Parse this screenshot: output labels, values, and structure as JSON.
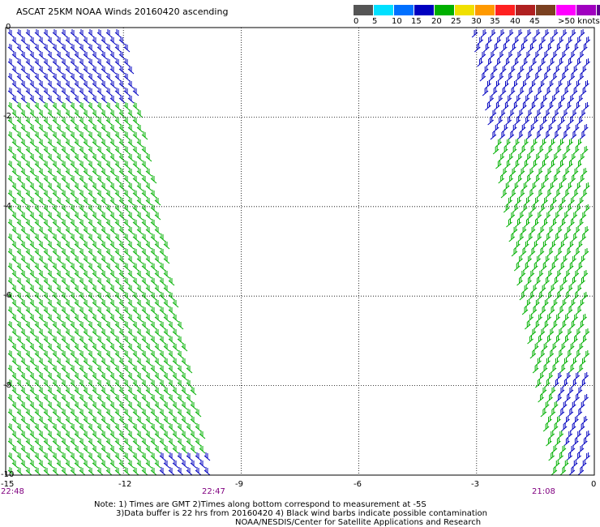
{
  "title": "ASCAT 25KM NOAA Winds 20160420 ascending",
  "legend": {
    "colors": [
      "#555555",
      "#00e0ff",
      "#0070ff",
      "#0000c0",
      "#00b000",
      "#f0e000",
      "#ff9900",
      "#ff2020",
      "#b02020",
      "#7a4020",
      "#ff00ff",
      "#a000c0",
      "#600090"
    ],
    "labels": [
      "0",
      "5",
      "10",
      "15",
      "20",
      "25",
      "30",
      "35",
      "40",
      "45",
      ">50 knots"
    ]
  },
  "y_ticks": [
    "0",
    "-2",
    "-4",
    "-6",
    "-8",
    "-10"
  ],
  "x_ticks": [
    "-15",
    "-12",
    "-9",
    "-6",
    "-3",
    "0"
  ],
  "times": [
    "22:48",
    "22:47",
    "21:08"
  ],
  "notes": [
    "Note: 1) Times are GMT 2)Times along bottom correspond to measurement at -5S",
    "3)Data buffer is 22 hrs from 20160420 4) Black wind barbs indicate possible contamination",
    "NOAA/NESDIS/Center for Satellite Applications and Research"
  ],
  "map": {
    "lon_range": [
      -15,
      0
    ],
    "lat_range": [
      -10,
      0
    ],
    "grid_lon_step": 3,
    "grid_lat_step": 2,
    "swaths": [
      {
        "name": "west-swath",
        "time": "22:48"
      },
      {
        "name": "east-swath",
        "time": "21:08"
      }
    ]
  }
}
